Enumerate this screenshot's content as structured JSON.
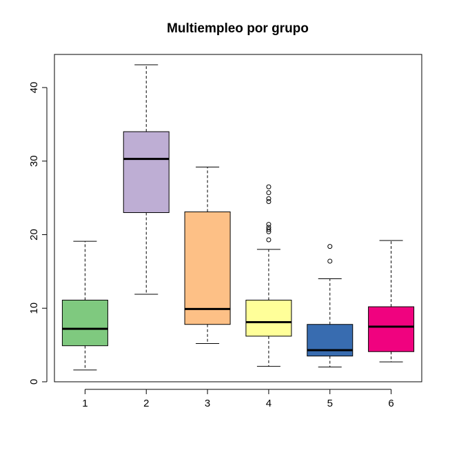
{
  "chart_data": {
    "type": "boxplot",
    "title": "Multiempleo por grupo",
    "xlabel": "",
    "ylabel": "",
    "ylim": [
      0,
      44.5
    ],
    "y_ticks": [
      0,
      10,
      20,
      30,
      40
    ],
    "categories": [
      "1",
      "2",
      "3",
      "4",
      "5",
      "6"
    ],
    "grid": false,
    "boxes": [
      {
        "category": "1",
        "color": "#7FC97F",
        "whisker_low": 1.6,
        "q1": 4.9,
        "median": 7.2,
        "q3": 11.1,
        "whisker_high": 19.1,
        "outliers": []
      },
      {
        "category": "2",
        "color": "#BEAED4",
        "whisker_low": 11.9,
        "q1": 23.0,
        "median": 30.3,
        "q3": 34.0,
        "whisker_high": 43.1,
        "outliers": []
      },
      {
        "category": "3",
        "color": "#FDC086",
        "whisker_low": 5.2,
        "q1": 7.8,
        "median": 9.9,
        "q3": 23.1,
        "whisker_high": 29.2,
        "outliers": []
      },
      {
        "category": "4",
        "color": "#FFFF99",
        "whisker_low": 2.1,
        "q1": 6.2,
        "median": 8.1,
        "q3": 11.1,
        "whisker_high": 18.0,
        "outliers": [
          19.3,
          20.4,
          20.7,
          21.0,
          21.4,
          24.5,
          24.9,
          25.7,
          26.5
        ]
      },
      {
        "category": "5",
        "color": "#386CB0",
        "whisker_low": 2.0,
        "q1": 3.5,
        "median": 4.3,
        "q3": 7.8,
        "whisker_high": 14.0,
        "outliers": [
          16.4,
          18.4
        ]
      },
      {
        "category": "6",
        "color": "#F0027F",
        "whisker_low": 2.7,
        "q1": 4.1,
        "median": 7.5,
        "q3": 10.2,
        "whisker_high": 19.2,
        "outliers": []
      }
    ]
  }
}
